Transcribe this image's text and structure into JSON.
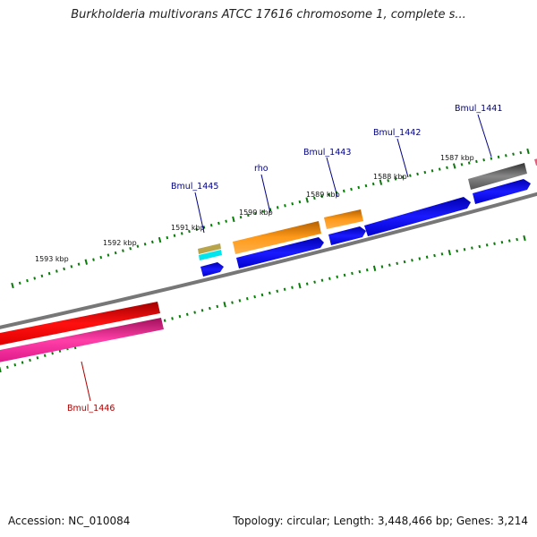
{
  "title": "Burkholderia multivorans ATCC 17616 chromosome 1, complete s...",
  "accession": "Accession: NC_010084",
  "summary": "Topology: circular; Length: 3,448,466 bp; Genes: 3,214",
  "colors": {
    "forward_gene": "#ff8c00",
    "cds": "#0000ee",
    "red_gene": "#ee0000",
    "pink_gene": "#e0198a",
    "grey_gene": "#666666",
    "tick": "#0a7a0a",
    "backbone": "#777777",
    "label_blue": "#000080",
    "label_red": "#aa0000"
  },
  "kbp_labels": [
    "1593 kbp",
    "1592 kbp",
    "1591 kbp",
    "1590 kbp",
    "1589 kbp",
    "1588 kbp",
    "1587 kbp"
  ],
  "gene_labels": [
    {
      "text": "Bmul_1445",
      "color": "label_blue"
    },
    {
      "text": "rho",
      "color": "label_blue"
    },
    {
      "text": "Bmul_1443",
      "color": "label_blue"
    },
    {
      "text": "Bmul_1442",
      "color": "label_blue"
    },
    {
      "text": "Bmul_1441",
      "color": "label_blue"
    },
    {
      "text": "Bmul_1446",
      "color": "label_red"
    }
  ]
}
